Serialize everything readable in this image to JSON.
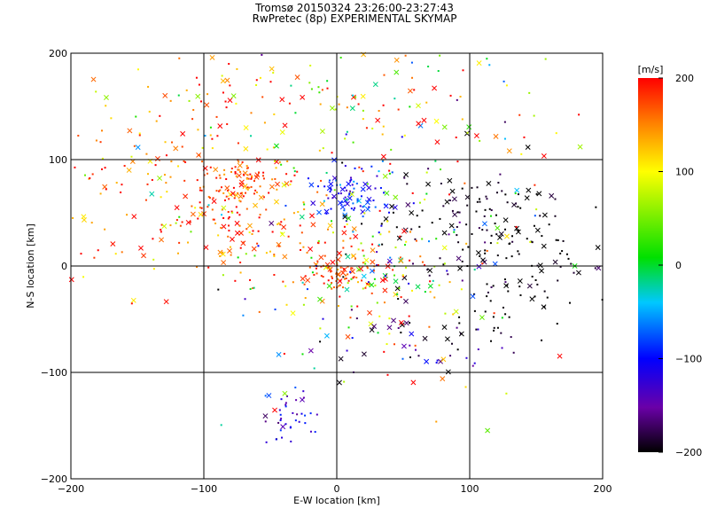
{
  "title": "Tromsø 20150324 23:26:00-23:27:43",
  "subtitle": "RwPretec (8p) EXPERIMENTAL SKYMAP",
  "chart_data": {
    "type": "scatter",
    "title": "Tromsø 20150324 23:26:00-23:27:43",
    "subtitle": "RwPretec (8p) EXPERIMENTAL SKYMAP",
    "xlabel": "E-W location [km]",
    "ylabel": "N-S location [km]",
    "xlim": [
      -200,
      200
    ],
    "ylim": [
      -200,
      200
    ],
    "xticks": [
      -200,
      -100,
      0,
      100,
      200
    ],
    "yticks": [
      -200,
      -100,
      0,
      100,
      200
    ],
    "grid": true,
    "colorbar": {
      "label": "[m/s]",
      "range": [
        -200,
        200
      ],
      "ticks": [
        -200,
        -100,
        0,
        100,
        200
      ],
      "colormap": "rainbow (black-purple-blue-cyan-green-yellow-red)"
    },
    "clusters": [
      {
        "x": -75,
        "y": 78,
        "sx": 16,
        "sy": 13,
        "n": 90,
        "v": 175,
        "vs": 30
      },
      {
        "x": -70,
        "y": 40,
        "sx": 35,
        "sy": 25,
        "n": 110,
        "v": 170,
        "vs": 35
      },
      {
        "x": 14,
        "y": 68,
        "sx": 14,
        "sy": 14,
        "n": 90,
        "v": -100,
        "vs": 25
      },
      {
        "x": 110,
        "y": 35,
        "sx": 45,
        "sy": 28,
        "n": 150,
        "v": -200,
        "vs": 15
      },
      {
        "x": 5,
        "y": -5,
        "sx": 18,
        "sy": 12,
        "n": 90,
        "v": 180,
        "vs": 20
      },
      {
        "x": 40,
        "y": 0,
        "sx": 40,
        "sy": 25,
        "n": 110,
        "v": 60,
        "vs": 110
      },
      {
        "x": -150,
        "y": 80,
        "sx": 40,
        "sy": 45,
        "n": 120,
        "v": 165,
        "vs": 45
      },
      {
        "x": -60,
        "y": 155,
        "sx": 50,
        "sy": 25,
        "n": 70,
        "v": 150,
        "vs": 80
      },
      {
        "x": 60,
        "y": 150,
        "sx": 50,
        "sy": 30,
        "n": 60,
        "v": 100,
        "vs": 120
      },
      {
        "x": -35,
        "y": -140,
        "sx": 10,
        "sy": 14,
        "n": 40,
        "v": -120,
        "vs": 30
      },
      {
        "x": 70,
        "y": -70,
        "sx": 40,
        "sy": 20,
        "n": 55,
        "v": -170,
        "vs": 40
      },
      {
        "x": 140,
        "y": -20,
        "sx": 25,
        "sy": 20,
        "n": 50,
        "v": -200,
        "vs": 10
      },
      {
        "x": 0,
        "y": 30,
        "sx": 110,
        "sy": 90,
        "n": 200,
        "v": 90,
        "vs": 120
      }
    ]
  }
}
